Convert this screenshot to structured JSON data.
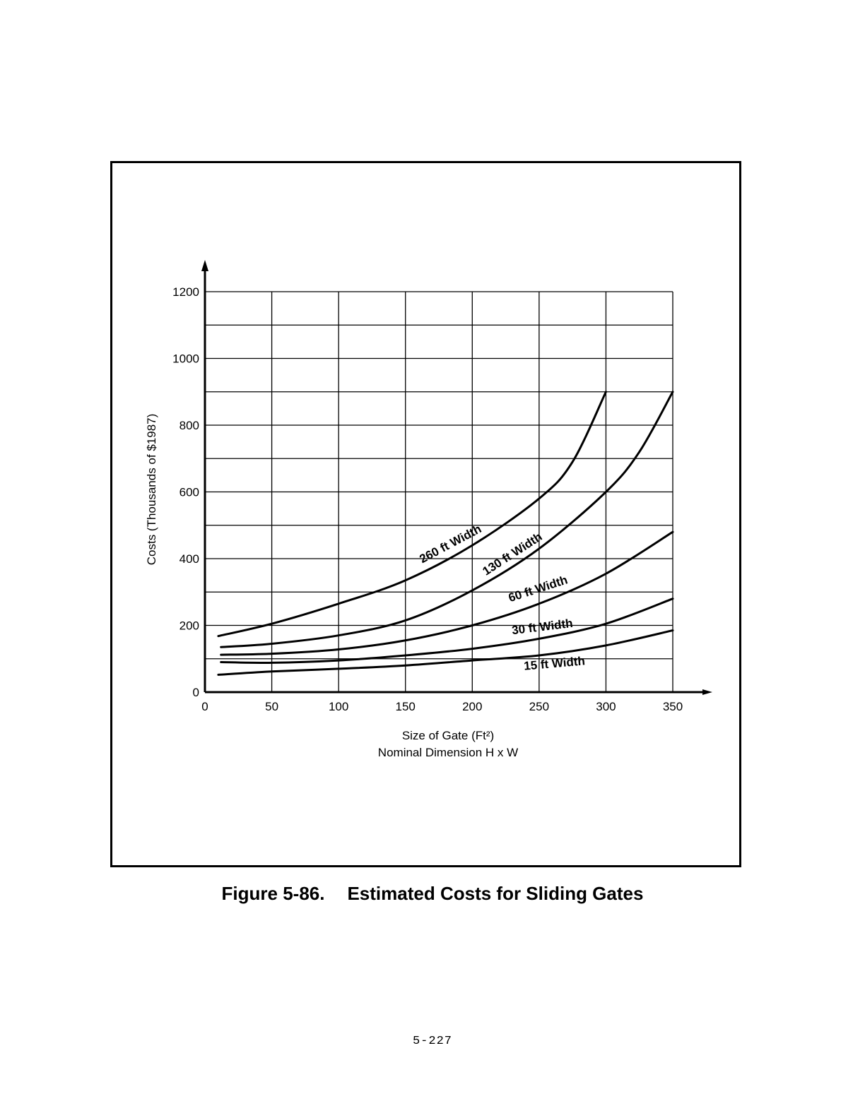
{
  "chart_data": {
    "type": "line",
    "xlabel": "Size of Gate (Ft²)",
    "xlabel2": "Nominal Dimension H x W",
    "ylabel": "Costs (Thousands of $1987)",
    "xlim": [
      0,
      350
    ],
    "ylim": [
      0,
      1200
    ],
    "xticks": [
      "0",
      "50",
      "100",
      "150",
      "200",
      "250",
      "300",
      "350"
    ],
    "yticks": [
      "0",
      "200",
      "400",
      "600",
      "800",
      "1000",
      "1200"
    ],
    "grid": true,
    "legend": "inline labels on curves",
    "series": [
      {
        "name": "260 ft Width",
        "x": [
          10,
          50,
          100,
          150,
          200,
          250,
          275,
          300
        ],
        "y": [
          168,
          205,
          265,
          335,
          440,
          580,
          690,
          900
        ]
      },
      {
        "name": "130 ft Width",
        "x": [
          12,
          50,
          100,
          150,
          200,
          250,
          300,
          325,
          350
        ],
        "y": [
          135,
          145,
          170,
          215,
          305,
          430,
          600,
          720,
          900
        ]
      },
      {
        "name": "60 ft Width",
        "x": [
          12,
          50,
          100,
          150,
          200,
          250,
          300,
          350
        ],
        "y": [
          112,
          115,
          128,
          155,
          200,
          265,
          355,
          480
        ]
      },
      {
        "name": "30 ft Width",
        "x": [
          12,
          50,
          100,
          150,
          200,
          250,
          300,
          350
        ],
        "y": [
          90,
          88,
          95,
          110,
          130,
          160,
          205,
          280
        ]
      },
      {
        "name": "15 ft Width",
        "x": [
          10,
          50,
          100,
          150,
          200,
          250,
          300,
          350
        ],
        "y": [
          52,
          62,
          70,
          80,
          95,
          110,
          140,
          185
        ]
      }
    ]
  },
  "caption": {
    "number": "Figure 5-86.",
    "text": "Estimated Costs for Sliding Gates"
  },
  "page_number": "5-227"
}
